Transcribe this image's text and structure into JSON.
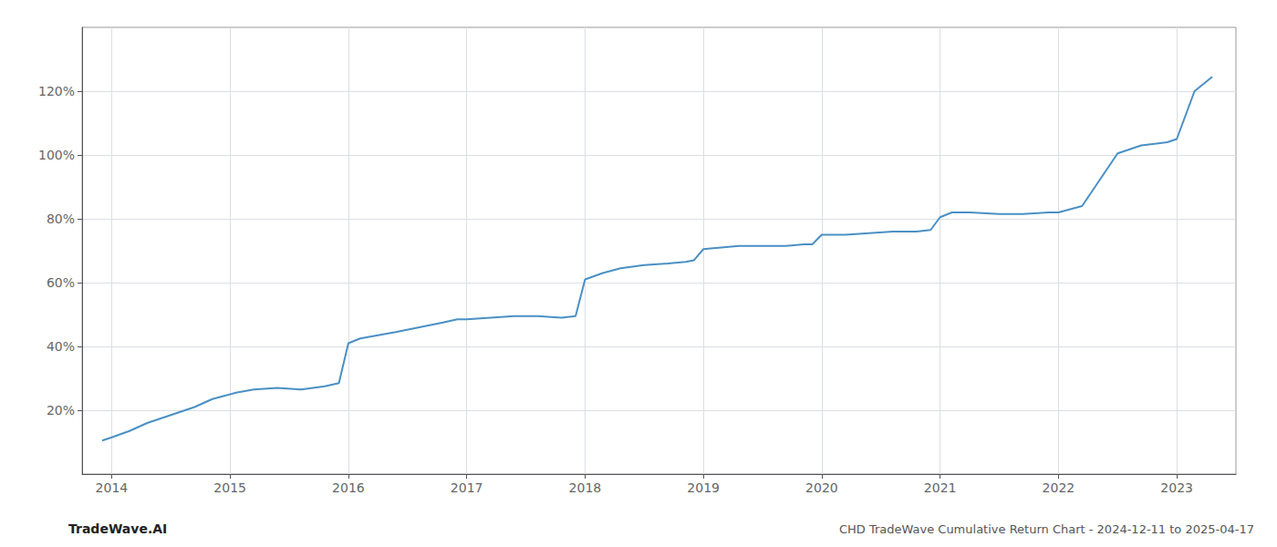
{
  "chart_data": {
    "type": "line",
    "title": "CHD TradeWave Cumulative Return Chart - 2024-12-11 to 2025-04-17",
    "annotations": [
      "TradeWave.AI"
    ],
    "x": [
      2013.92,
      2014.0,
      2014.15,
      2014.3,
      2014.5,
      2014.7,
      2014.85,
      2014.95,
      2015.05,
      2015.2,
      2015.4,
      2015.6,
      2015.8,
      2015.92,
      2016.0,
      2016.1,
      2016.25,
      2016.4,
      2016.6,
      2016.8,
      2016.92,
      2017.0,
      2017.2,
      2017.4,
      2017.6,
      2017.8,
      2017.92,
      2018.0,
      2018.15,
      2018.3,
      2018.5,
      2018.7,
      2018.85,
      2018.92,
      2019.0,
      2019.15,
      2019.3,
      2019.5,
      2019.7,
      2019.85,
      2019.92,
      2020.0,
      2020.2,
      2020.4,
      2020.6,
      2020.8,
      2020.92,
      2021.0,
      2021.1,
      2021.25,
      2021.5,
      2021.7,
      2021.92,
      2022.0,
      2022.2,
      2022.5,
      2022.7,
      2022.92,
      2023.0,
      2023.15,
      2023.3
    ],
    "values": [
      10.5,
      11.5,
      13.5,
      16.0,
      18.5,
      21.0,
      23.5,
      24.5,
      25.5,
      26.5,
      27.0,
      26.5,
      27.5,
      28.5,
      41.0,
      42.5,
      43.5,
      44.5,
      46.0,
      47.5,
      48.5,
      48.5,
      49.0,
      49.5,
      49.5,
      49.0,
      49.5,
      61.0,
      63.0,
      64.5,
      65.5,
      66.0,
      66.5,
      67.0,
      70.5,
      71.0,
      71.5,
      71.5,
      71.5,
      72.0,
      72.0,
      75.0,
      75.0,
      75.5,
      76.0,
      76.0,
      76.5,
      80.5,
      82.0,
      82.0,
      81.5,
      81.5,
      82.0,
      82.0,
      84.0,
      100.5,
      103.0,
      104.0,
      105.0,
      120.0,
      124.5
    ],
    "color": "#4a90c4",
    "xlim": [
      2013.75,
      2023.5
    ],
    "xticks": [
      2014,
      2015,
      2016,
      2017,
      2018,
      2019,
      2020,
      2021,
      2022,
      2023
    ],
    "ylim": [
      0,
      140
    ],
    "yticks": [
      {
        "value": 20,
        "label": "20%"
      },
      {
        "value": 40,
        "label": "40%"
      },
      {
        "value": 60,
        "label": "60%"
      },
      {
        "value": 80,
        "label": "80%"
      },
      {
        "value": 100,
        "label": "100%"
      },
      {
        "value": 120,
        "label": "120%"
      }
    ],
    "grid": true
  }
}
